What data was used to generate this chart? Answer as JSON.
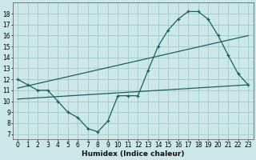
{
  "title": "",
  "xlabel": "Humidex (Indice chaleur)",
  "bg_color": "#cce8e8",
  "grid_color": "#a0c8c8",
  "line_color": "#1a6060",
  "xlim": [
    -0.5,
    23.5
  ],
  "ylim": [
    6.5,
    19
  ],
  "yticks": [
    7,
    8,
    9,
    10,
    11,
    12,
    13,
    14,
    15,
    16,
    17,
    18
  ],
  "xticks": [
    0,
    1,
    2,
    3,
    4,
    5,
    6,
    7,
    8,
    9,
    10,
    11,
    12,
    13,
    14,
    15,
    16,
    17,
    18,
    19,
    20,
    21,
    22,
    23
  ],
  "curve1_x": [
    0,
    1,
    2,
    3,
    4,
    5,
    6,
    7,
    8,
    9,
    10,
    11,
    12,
    13,
    14,
    15,
    16,
    17,
    18,
    19,
    20,
    21,
    22,
    23
  ],
  "curve1_y": [
    12.0,
    11.5,
    11.0,
    11.0,
    10.0,
    9.0,
    8.5,
    7.5,
    7.2,
    8.2,
    10.5,
    10.5,
    10.5,
    12.8,
    15.0,
    16.5,
    17.5,
    18.2,
    18.2,
    17.5,
    16.0,
    14.2,
    12.5,
    11.5
  ],
  "curve2_x": [
    0,
    23
  ],
  "curve2_y": [
    11.2,
    16.0
  ],
  "curve3_x": [
    0,
    23
  ],
  "curve3_y": [
    10.2,
    11.5
  ],
  "tick_fontsize": 5.5,
  "xlabel_fontsize": 6.5
}
